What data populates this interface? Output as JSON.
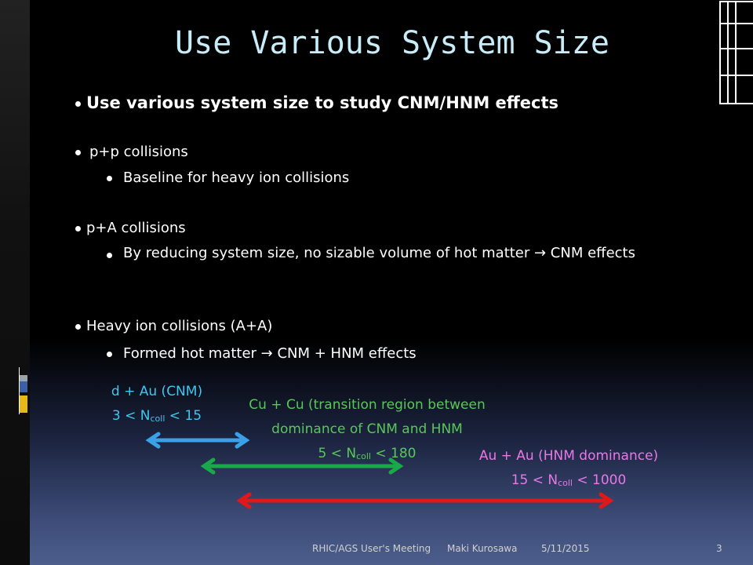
{
  "title": "Use Various System Size",
  "bullets": [
    {
      "text": "Use various system size to study CNM/HNM effects"
    },
    {
      "text": "p+p collisions",
      "sub": [
        "Baseline for heavy ion collisions"
      ]
    },
    {
      "text": "p+A collisions",
      "sub": [
        "By reducing system size, no sizable volume of hot matter → CNM effects"
      ]
    },
    {
      "text": "Heavy ion collisions (A+A)",
      "sub": [
        "Formed hot matter → CNM + HNM effects"
      ]
    }
  ],
  "annotations": {
    "dau": {
      "line1": "d + Au (CNM)",
      "range": {
        "pre": "3 < N",
        "sub": "coll",
        "post": " < 15"
      }
    },
    "cucu": {
      "line1": "Cu + Cu (transition region between",
      "line2": "dominance of CNM and HNM",
      "range": {
        "pre": "5 < N",
        "sub": "coll",
        "post": " < 180"
      }
    },
    "auau": {
      "line1": "Au + Au (HNM dominance)",
      "range": {
        "pre": "15 < N",
        "sub": "coll",
        "post": " < 1000"
      }
    }
  },
  "footer": {
    "event": "RHIC/AGS User's Meeting",
    "author": "Maki Kurosawa",
    "date": "5/11/2015",
    "page": "3"
  }
}
